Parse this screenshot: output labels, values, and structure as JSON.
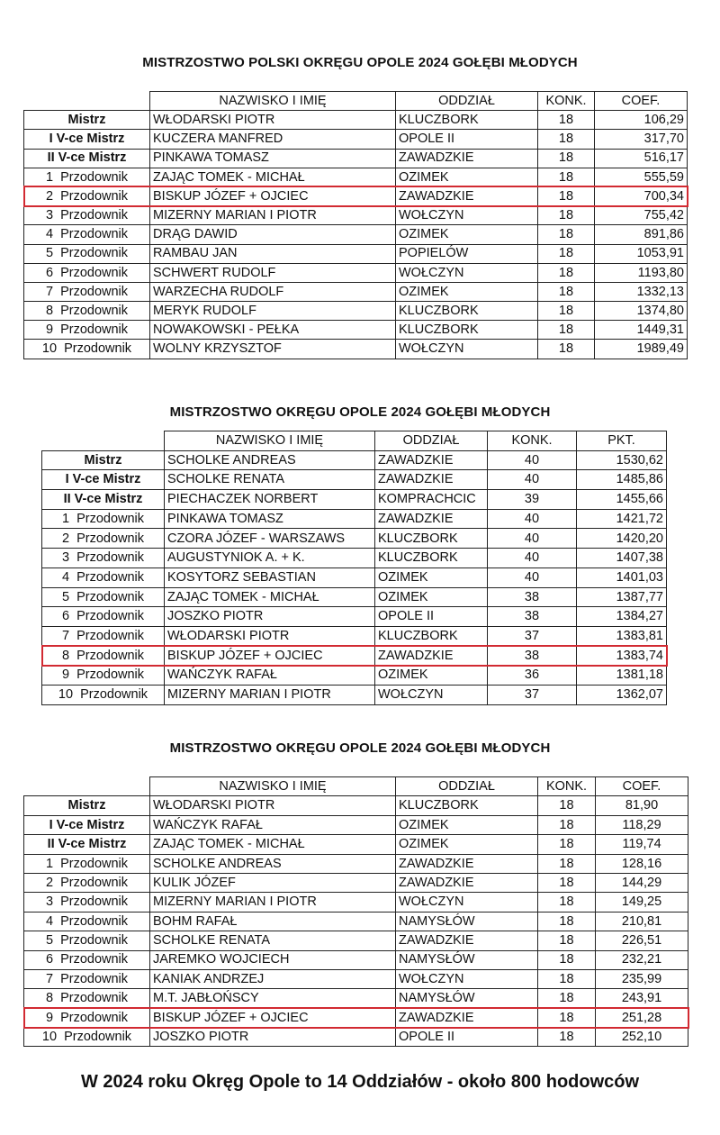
{
  "highlight_color": "#d22a32",
  "tables": [
    {
      "title": "MISTRZOSTWO POLSKI OKRĘGU OPOLE 2024 GOŁĘBI MŁODYCH",
      "headers": [
        "NAZWISKO I IMIĘ",
        "ODDZIAŁ",
        "KONK.",
        "COEF."
      ],
      "rows": [
        {
          "rank": "Mistrz",
          "name": "WŁODARSKI PIOTR",
          "branch": "KLUCZBORK",
          "konk": "18",
          "value": "106,29"
        },
        {
          "rank": "I V-ce Mistrz",
          "name": "KUCZERA MANFRED",
          "branch": "OPOLE II",
          "konk": "18",
          "value": "317,70"
        },
        {
          "rank": "II V-ce Mistrz",
          "name": "PINKAWA TOMASZ",
          "branch": "ZAWADZKIE",
          "konk": "18",
          "value": "516,17"
        },
        {
          "rank": "1  Przodownik",
          "name": "ZAJĄC TOMEK - MICHAŁ",
          "branch": "OZIMEK",
          "konk": "18",
          "value": "555,59"
        },
        {
          "rank": "2  Przodownik",
          "name": "BISKUP JÓZEF + OJCIEC",
          "branch": "ZAWADZKIE",
          "konk": "18",
          "value": "700,34",
          "highlighted": true
        },
        {
          "rank": "3  Przodownik",
          "name": "MIZERNY MARIAN I PIOTR",
          "branch": "WOŁCZYN",
          "konk": "18",
          "value": "755,42"
        },
        {
          "rank": "4  Przodownik",
          "name": "DRĄG DAWID",
          "branch": "OZIMEK",
          "konk": "18",
          "value": "891,86"
        },
        {
          "rank": "5  Przodownik",
          "name": "RAMBAU JAN",
          "branch": "POPIELÓW",
          "konk": "18",
          "value": "1053,91"
        },
        {
          "rank": "6  Przodownik",
          "name": "SCHWERT RUDOLF",
          "branch": "WOŁCZYN",
          "konk": "18",
          "value": "1193,80"
        },
        {
          "rank": "7  Przodownik",
          "name": "WARZECHA RUDOLF",
          "branch": "OZIMEK",
          "konk": "18",
          "value": "1332,13"
        },
        {
          "rank": "8  Przodownik",
          "name": "MERYK RUDOLF",
          "branch": "KLUCZBORK",
          "konk": "18",
          "value": "1374,80"
        },
        {
          "rank": "9  Przodownik",
          "name": "NOWAKOWSKI - PEŁKA",
          "branch": "KLUCZBORK",
          "konk": "18",
          "value": "1449,31"
        },
        {
          "rank": "10  Przodownik",
          "name": "WOLNY KRZYSZTOF",
          "branch": "WOŁCZYN",
          "konk": "18",
          "value": "1989,49"
        }
      ]
    },
    {
      "title": "MISTRZOSTWO OKRĘGU OPOLE 2024 GOŁĘBI MŁODYCH",
      "headers": [
        "NAZWISKO I IMIĘ",
        "ODDZIAŁ",
        "KONK.",
        "PKT."
      ],
      "rows": [
        {
          "rank": "Mistrz",
          "name": "SCHOLKE ANDREAS",
          "branch": "ZAWADZKIE",
          "konk": "40",
          "value": "1530,62"
        },
        {
          "rank": "I V-ce Mistrz",
          "name": "SCHOLKE RENATA",
          "branch": "ZAWADZKIE",
          "konk": "40",
          "value": "1485,86"
        },
        {
          "rank": "II V-ce Mistrz",
          "name": "PIECHACZEK NORBERT",
          "branch": "KOMPRACHCIC",
          "konk": "39",
          "value": "1455,66"
        },
        {
          "rank": "1  Przodownik",
          "name": "PINKAWA TOMASZ",
          "branch": "ZAWADZKIE",
          "konk": "40",
          "value": "1421,72"
        },
        {
          "rank": "2  Przodownik",
          "name": "CZORA JÓZEF - WARSZAWS",
          "branch": "KLUCZBORK",
          "konk": "40",
          "value": "1420,20"
        },
        {
          "rank": "3  Przodownik",
          "name": "AUGUSTYNIOK A. + K.",
          "branch": "KLUCZBORK",
          "konk": "40",
          "value": "1407,38"
        },
        {
          "rank": "4  Przodownik",
          "name": "KOSYTORZ SEBASTIAN",
          "branch": "OZIMEK",
          "konk": "40",
          "value": "1401,03"
        },
        {
          "rank": "5  Przodownik",
          "name": "ZAJĄC TOMEK - MICHAŁ",
          "branch": "OZIMEK",
          "konk": "38",
          "value": "1387,77"
        },
        {
          "rank": "6  Przodownik",
          "name": "JOSZKO PIOTR",
          "branch": "OPOLE II",
          "konk": "38",
          "value": "1384,27"
        },
        {
          "rank": "7  Przodownik",
          "name": "WŁODARSKI PIOTR",
          "branch": "KLUCZBORK",
          "konk": "37",
          "value": "1383,81"
        },
        {
          "rank": "8  Przodownik",
          "name": "BISKUP JÓZEF + OJCIEC",
          "branch": "ZAWADZKIE",
          "konk": "38",
          "value": "1383,74",
          "highlighted": true
        },
        {
          "rank": "9  Przodownik",
          "name": "WAŃCZYK RAFAŁ",
          "branch": "OZIMEK",
          "konk": "36",
          "value": "1381,18"
        },
        {
          "rank": "10  Przodownik",
          "name": "MIZERNY MARIAN I PIOTR",
          "branch": "WOŁCZYN",
          "konk": "37",
          "value": "1362,07"
        }
      ]
    },
    {
      "title": "MISTRZOSTWO OKRĘGU OPOLE 2024 GOŁĘBI MŁODYCH",
      "headers": [
        "NAZWISKO I IMIĘ",
        "ODDZIAŁ",
        "KONK.",
        "COEF."
      ],
      "rows": [
        {
          "rank": "Mistrz",
          "name": "WŁODARSKI PIOTR",
          "branch": "KLUCZBORK",
          "konk": "18",
          "value": "81,90"
        },
        {
          "rank": "I V-ce Mistrz",
          "name": "WAŃCZYK RAFAŁ",
          "branch": "OZIMEK",
          "konk": "18",
          "value": "118,29"
        },
        {
          "rank": "II V-ce Mistrz",
          "name": "ZAJĄC TOMEK - MICHAŁ",
          "branch": "OZIMEK",
          "konk": "18",
          "value": "119,74"
        },
        {
          "rank": "1  Przodownik",
          "name": "SCHOLKE ANDREAS",
          "branch": "ZAWADZKIE",
          "konk": "18",
          "value": "128,16"
        },
        {
          "rank": "2  Przodownik",
          "name": "KULIK JÓZEF",
          "branch": "ZAWADZKIE",
          "konk": "18",
          "value": "144,29"
        },
        {
          "rank": "3  Przodownik",
          "name": "MIZERNY MARIAN I PIOTR",
          "branch": "WOŁCZYN",
          "konk": "18",
          "value": "149,25"
        },
        {
          "rank": "4  Przodownik",
          "name": "BOHM RAFAŁ",
          "branch": "NAMYSŁÓW",
          "konk": "18",
          "value": "210,81"
        },
        {
          "rank": "5  Przodownik",
          "name": "SCHOLKE RENATA",
          "branch": "ZAWADZKIE",
          "konk": "18",
          "value": "226,51"
        },
        {
          "rank": "6  Przodownik",
          "name": "JAREMKO WOJCIECH",
          "branch": "NAMYSŁÓW",
          "konk": "18",
          "value": "232,21"
        },
        {
          "rank": "7  Przodownik",
          "name": "KANIAK ANDRZEJ",
          "branch": "WOŁCZYN",
          "konk": "18",
          "value": "235,99"
        },
        {
          "rank": "8  Przodownik",
          "name": "M.T. JABŁOŃSCY",
          "branch": "NAMYSŁÓW",
          "konk": "18",
          "value": "243,91"
        },
        {
          "rank": "9  Przodownik",
          "name": "BISKUP JÓZEF + OJCIEC",
          "branch": "ZAWADZKIE",
          "konk": "18",
          "value": "251,28",
          "highlighted": true
        },
        {
          "rank": "10  Przodownik",
          "name": "JOSZKO PIOTR",
          "branch": "OPOLE II",
          "konk": "18",
          "value": "252,10"
        }
      ]
    }
  ],
  "footer": "W 2024 roku Okręg Opole to 14 Oddziałów - około 800 hodowców"
}
